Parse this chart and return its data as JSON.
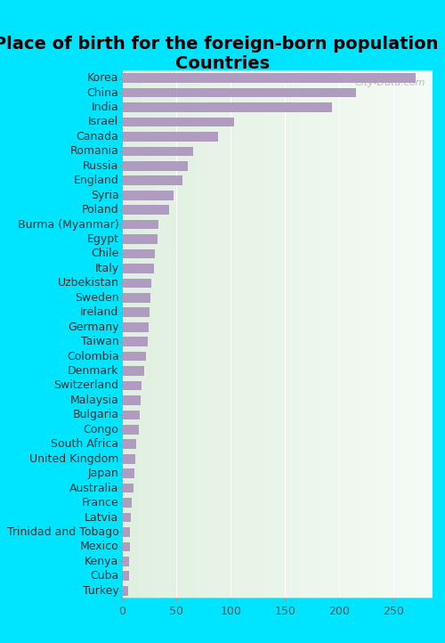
{
  "title": "Place of birth for the foreign-born population -\nCountries",
  "categories": [
    "Korea",
    "China",
    "India",
    "Israel",
    "Canada",
    "Romania",
    "Russia",
    "England",
    "Syria",
    "Poland",
    "Burma (Myanmar)",
    "Egypt",
    "Chile",
    "Italy",
    "Uzbekistan",
    "Sweden",
    "Ireland",
    "Germany",
    "Taiwan",
    "Colombia",
    "Denmark",
    "Switzerland",
    "Malaysia",
    "Bulgaria",
    "Congo",
    "South Africa",
    "United Kingdom",
    "Japan",
    "Australia",
    "France",
    "Latvia",
    "Trinidad and Tobago",
    "Mexico",
    "Kenya",
    "Cuba",
    "Turkey"
  ],
  "values": [
    270,
    215,
    193,
    103,
    88,
    65,
    60,
    55,
    47,
    43,
    33,
    32,
    30,
    29,
    27,
    26,
    25,
    24,
    23,
    22,
    20,
    18,
    17,
    16,
    15,
    13,
    12,
    11,
    10,
    9,
    8,
    7,
    7,
    6,
    6,
    5
  ],
  "bar_color": "#b09cc0",
  "background_color_plot_left": "#e0f0e0",
  "background_color_plot_right": "#f5fbf5",
  "background_color_fig": "#00e5ff",
  "xlim": [
    0,
    285
  ],
  "xticks": [
    0,
    50,
    100,
    150,
    200,
    250
  ],
  "title_fontsize": 14,
  "tick_fontsize": 9,
  "label_fontsize": 9,
  "watermark": "City-Data.com",
  "bar_height": 0.65
}
